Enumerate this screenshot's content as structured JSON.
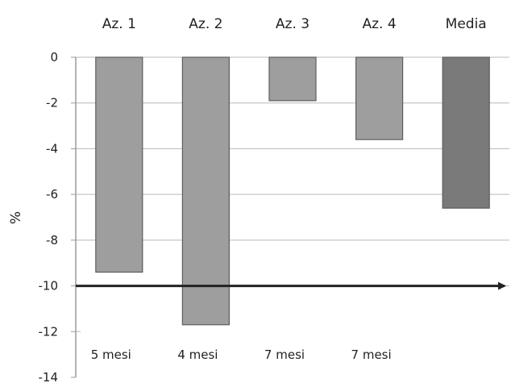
{
  "chart_data": {
    "type": "bar",
    "categories": [
      "Az. 1",
      "Az. 2",
      "Az. 3",
      "Az. 4",
      "Media"
    ],
    "values": [
      -9.4,
      -11.7,
      -1.9,
      -3.6,
      -6.6
    ],
    "bar_colors": [
      "#9e9e9e",
      "#9e9e9e",
      "#9e9e9e",
      "#9e9e9e",
      "#7a7a7a"
    ],
    "title": "",
    "xlabel": "",
    "ylabel": "%",
    "ylim": [
      -14,
      0
    ],
    "yticks": [
      "0",
      "-2",
      "-4",
      "-6",
      "-8",
      "-10",
      "-12",
      "-14"
    ],
    "grid": true,
    "category_axis_position": "top",
    "reference_line": {
      "value": -10,
      "style": "arrow"
    },
    "annotations": [
      "5 mesi",
      "4 mesi",
      "7 mesi",
      "7 mesi",
      ""
    ]
  }
}
